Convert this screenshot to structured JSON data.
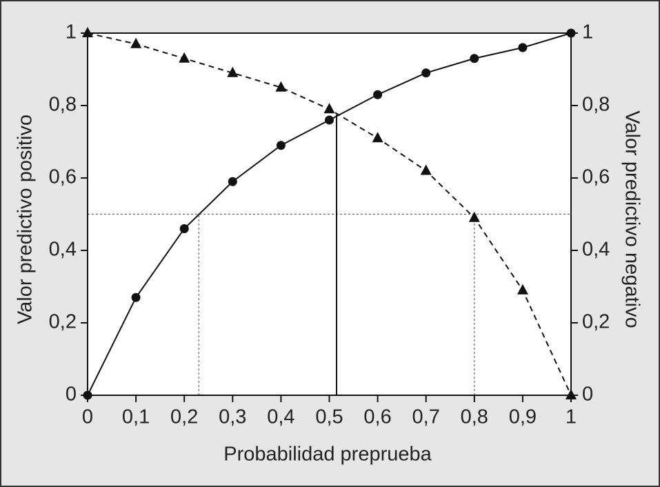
{
  "chart_data": {
    "type": "line",
    "xlabel": "Probabilidad preprueba",
    "ylabel": "Valor predictivo positivo",
    "y2label": "Valor predictivo negativo",
    "x": [
      0,
      0.1,
      0.2,
      0.3,
      0.4,
      0.5,
      0.6,
      0.7,
      0.8,
      0.9,
      1
    ],
    "series": [
      {
        "values": [
          0,
          0.27,
          0.46,
          0.59,
          0.69,
          0.76,
          0.83,
          0.89,
          0.93,
          0.96,
          1
        ],
        "color": "#111111",
        "style": "solid",
        "marker": "circle"
      },
      {
        "values": [
          1,
          0.97,
          0.93,
          0.89,
          0.85,
          0.79,
          0.71,
          0.62,
          0.49,
          0.29,
          0
        ],
        "color": "#111111",
        "style": "dashed",
        "marker": "triangle",
        "axis": "y2"
      }
    ],
    "xlim": [
      0,
      1
    ],
    "xticks": [
      0,
      {
        "value": 0.1,
        "label": "0,1"
      },
      {
        "value": 0.2,
        "label": "0,2"
      },
      {
        "value": 0.3,
        "label": "0,3"
      },
      {
        "value": 0.4,
        "label": "0,4"
      },
      {
        "value": 0.5,
        "label": "0,5"
      },
      {
        "value": 0.6,
        "label": "0,6"
      },
      {
        "value": 0.7,
        "label": "0,7"
      },
      {
        "value": 0.8,
        "label": "0,8"
      },
      {
        "value": 0.9,
        "label": "0,9"
      },
      1
    ],
    "ylim": [
      0,
      1
    ],
    "yticks": [
      0,
      {
        "value": 0.2,
        "label": "0,2"
      },
      {
        "value": 0.4,
        "label": "0,4"
      },
      {
        "value": 0.6,
        "label": "0,6"
      },
      {
        "value": 0.8,
        "label": "0,8"
      },
      1
    ],
    "y2lim": [
      0,
      1
    ],
    "y2ticks": [
      0,
      {
        "value": 0.2,
        "label": "0,2"
      },
      {
        "value": 0.4,
        "label": "0,4"
      },
      {
        "value": 0.6,
        "label": "0,6"
      },
      {
        "value": 0.8,
        "label": "0,8"
      },
      1
    ],
    "dotted_y": 0.5,
    "dotted_x": [
      0.23,
      0.8
    ],
    "solid_x": 0.515,
    "solid_top": 0.775
  }
}
